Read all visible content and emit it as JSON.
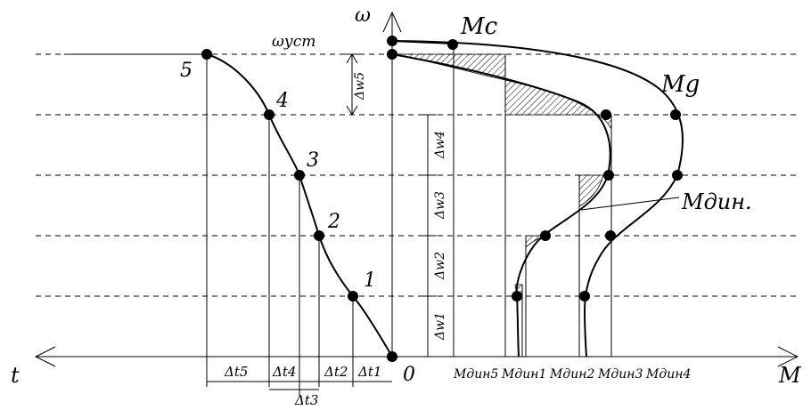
{
  "axes": {
    "omega": "ω",
    "t": "t",
    "M": "M",
    "origin": "0"
  },
  "labels": {
    "omega_ust": "ωуст",
    "Mc": "Mc",
    "Mg": "Mg",
    "Mdin": "Mдин."
  },
  "points_left": [
    "1",
    "2",
    "3",
    "4",
    "5"
  ],
  "delta_t": [
    "Δt5",
    "Δt4",
    "Δt3",
    "Δt2",
    "Δt1"
  ],
  "delta_w": [
    "Δw1",
    "Δw2",
    "Δw3",
    "Δw4",
    "Δw5"
  ],
  "mdin_ticks": [
    "Mдин5",
    "Mдин1",
    "Mдин2",
    "Mдин3",
    "Mдин4"
  ]
}
